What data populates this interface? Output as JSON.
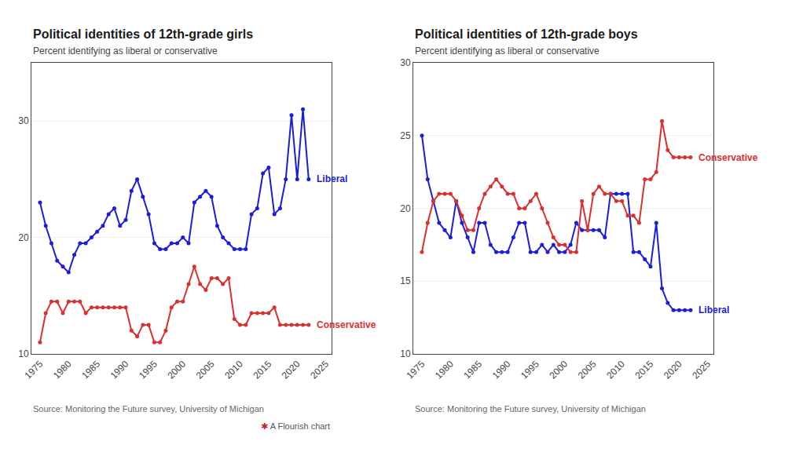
{
  "chart_data": [
    {
      "type": "line",
      "title": "Political identities of 12th-grade girls",
      "subtitle": "Percent identifying as liberal or conservative",
      "source": "Source: Monitoring the Future survey, University of Michigan",
      "x": [
        1975,
        1976,
        1977,
        1978,
        1979,
        1980,
        1981,
        1982,
        1983,
        1984,
        1985,
        1986,
        1987,
        1988,
        1989,
        1990,
        1991,
        1992,
        1993,
        1994,
        1995,
        1996,
        1997,
        1998,
        1999,
        2000,
        2001,
        2002,
        2003,
        2004,
        2005,
        2006,
        2007,
        2008,
        2009,
        2010,
        2011,
        2012,
        2013,
        2014,
        2015,
        2016,
        2017,
        2018,
        2019,
        2020,
        2021,
        2022
      ],
      "series": [
        {
          "name": "Liberal",
          "color": "#1c1cdb",
          "values": [
            23.0,
            21.0,
            19.5,
            18.0,
            17.5,
            17.0,
            18.5,
            19.5,
            19.5,
            20.0,
            20.5,
            21.0,
            22.0,
            22.5,
            21.0,
            21.5,
            24.0,
            25.0,
            23.5,
            22.0,
            19.5,
            19.0,
            19.0,
            19.5,
            19.5,
            20.0,
            19.5,
            23.0,
            23.5,
            24.0,
            23.5,
            21.0,
            20.0,
            19.5,
            19.0,
            19.0,
            19.0,
            22.0,
            22.5,
            25.5,
            26.0,
            22.0,
            22.5,
            25.0,
            30.5,
            25.0,
            31.0,
            25.0
          ]
        },
        {
          "name": "Conservative",
          "color": "#d93030",
          "values": [
            11.0,
            13.5,
            14.5,
            14.5,
            13.5,
            14.5,
            14.5,
            14.5,
            13.5,
            14.0,
            14.0,
            14.0,
            14.0,
            14.0,
            14.0,
            14.0,
            12.0,
            11.5,
            12.5,
            12.5,
            11.0,
            11.0,
            12.0,
            14.0,
            14.5,
            14.5,
            16.0,
            17.5,
            16.0,
            15.5,
            16.5,
            16.5,
            16.0,
            16.5,
            13.0,
            12.5,
            12.5,
            13.5,
            13.5,
            13.5,
            13.5,
            14.0,
            12.5,
            12.5,
            12.5,
            12.5,
            12.5,
            12.5
          ]
        }
      ],
      "xlim": [
        1973.5,
        2026
      ],
      "xticks": [
        1975,
        1980,
        1985,
        1990,
        1995,
        2000,
        2005,
        2010,
        2015,
        2020,
        2025
      ],
      "ylim": [
        10,
        35
      ],
      "yticks": [
        10,
        20,
        30
      ],
      "grid": true,
      "marker": "circle",
      "annotations": [
        {
          "text": "✱",
          "color": "#cc2222"
        },
        {
          "text": "A Flourish chart"
        }
      ]
    },
    {
      "type": "line",
      "title": "Political identities of 12th-grade boys",
      "subtitle": "Percent identifying as liberal or conservative",
      "source": "Source: Monitoring the Future survey, University of Michigan",
      "x": [
        1975,
        1976,
        1977,
        1978,
        1979,
        1980,
        1981,
        1982,
        1983,
        1984,
        1985,
        1986,
        1987,
        1988,
        1989,
        1990,
        1991,
        1992,
        1993,
        1994,
        1995,
        1996,
        1997,
        1998,
        1999,
        2000,
        2001,
        2002,
        2003,
        2004,
        2005,
        2006,
        2007,
        2008,
        2009,
        2010,
        2011,
        2012,
        2013,
        2014,
        2015,
        2016,
        2017,
        2018,
        2019,
        2020,
        2021,
        2022
      ],
      "series": [
        {
          "name": "Liberal",
          "color": "#1c1cdb",
          "values": [
            25.0,
            22.0,
            20.5,
            19.0,
            18.5,
            18.0,
            20.5,
            19.0,
            18.0,
            17.0,
            19.0,
            19.0,
            17.5,
            17.0,
            17.0,
            17.0,
            18.0,
            19.0,
            19.0,
            17.0,
            17.0,
            17.5,
            17.0,
            17.5,
            17.0,
            17.0,
            17.5,
            19.0,
            18.5,
            18.5,
            18.5,
            18.5,
            18.0,
            21.0,
            21.0,
            21.0,
            21.0,
            17.0,
            17.0,
            16.5,
            16.0,
            19.0,
            14.5,
            13.5,
            13.0,
            13.0,
            13.0,
            13.0
          ]
        },
        {
          "name": "Conservative",
          "color": "#d93030",
          "values": [
            17.0,
            19.0,
            20.5,
            21.0,
            21.0,
            21.0,
            20.5,
            19.5,
            18.5,
            18.5,
            20.0,
            21.0,
            21.5,
            22.0,
            21.5,
            21.0,
            21.0,
            20.0,
            20.0,
            20.5,
            21.0,
            20.0,
            19.0,
            18.0,
            17.5,
            17.5,
            17.0,
            17.0,
            20.5,
            18.5,
            21.0,
            21.5,
            21.0,
            21.0,
            20.5,
            20.5,
            19.5,
            19.5,
            19.0,
            22.0,
            22.0,
            22.5,
            26.0,
            24.0,
            23.5,
            23.5,
            23.5,
            23.5
          ]
        }
      ],
      "xlim": [
        1973.5,
        2026
      ],
      "xticks": [
        1975,
        1980,
        1985,
        1990,
        1995,
        2000,
        2005,
        2010,
        2015,
        2020,
        2025
      ],
      "ylim": [
        10,
        30
      ],
      "yticks": [
        10,
        15,
        20,
        25,
        30
      ],
      "grid": true,
      "marker": "circle"
    }
  ]
}
